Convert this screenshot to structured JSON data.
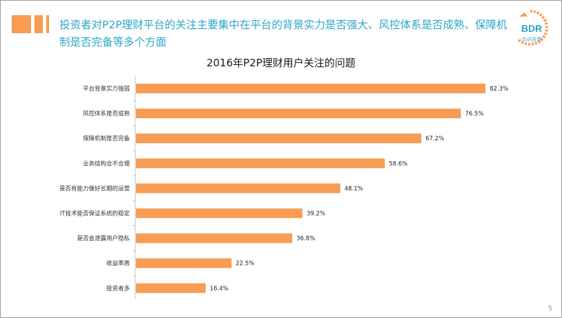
{
  "headline": "投资者对P2P理财平台的关注主要集中在平台的背景实力是否强大、风控体系是否成熟、保障机制是否完备等多个方面",
  "logo": {
    "text": "BDR",
    "sub": "比达咨询"
  },
  "page_number": "5",
  "colors": {
    "bar": "#F79C52",
    "headline": "#2EA5C9",
    "accent": "#F79C52"
  },
  "chart_data": {
    "type": "bar",
    "orientation": "horizontal",
    "title": "2016年P2P理财用户关注的问题",
    "xlabel": "",
    "ylabel": "",
    "xlim": [
      0,
      100
    ],
    "categories": [
      "平台背景实力强弱",
      "风控体系是否成熟",
      "保障机制是否完备",
      "业务结构合不合理",
      "是否有能力做好长期的运营",
      "IT技术能否保证系统的稳定",
      "是否会泄露用户隐私",
      "收益率高",
      "投资者多"
    ],
    "values": [
      82.3,
      76.5,
      67.2,
      58.6,
      48.1,
      39.2,
      36.8,
      22.5,
      16.4
    ],
    "value_labels": [
      "82.3%",
      "76.5%",
      "67.2%",
      "58.6%",
      "48.1%",
      "39.2%",
      "36.8%",
      "22.5%",
      "16.4%"
    ]
  }
}
